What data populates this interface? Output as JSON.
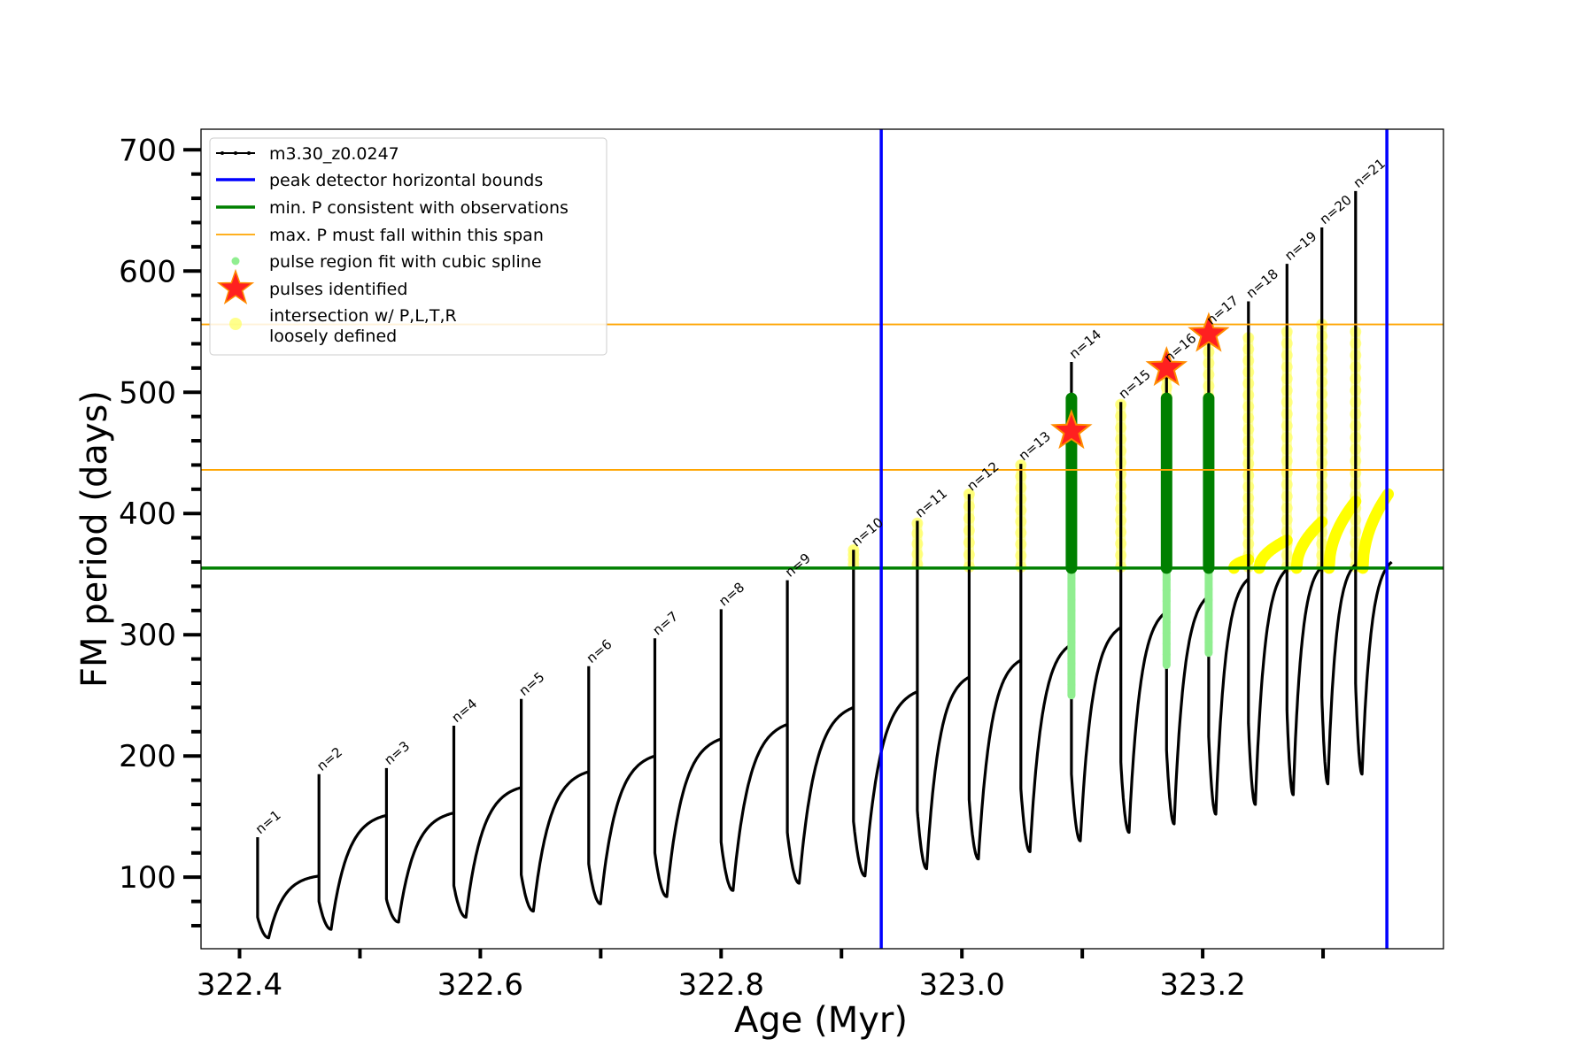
{
  "chart_data": {
    "type": "line",
    "xlabel": "Age (Myr)",
    "ylabel": "FM period (days)",
    "xlim": [
      322.368,
      323.4
    ],
    "ylim": [
      41,
      717
    ],
    "xticks": [
      322.4,
      322.6,
      322.8,
      323.0,
      323.2
    ],
    "xtick_labels": [
      "322.4",
      "322.6",
      "322.8",
      "323.0",
      "323.2"
    ],
    "xtick_minor": [
      322.5,
      322.7,
      322.9,
      323.1,
      323.3
    ],
    "yticks": [
      100,
      200,
      300,
      400,
      500,
      600,
      700
    ],
    "ytick_labels": [
      "100",
      "200",
      "300",
      "400",
      "500",
      "600",
      "700"
    ],
    "grid": false,
    "legend_position": "top-left",
    "legend": [
      {
        "label": "m3.30_z0.0247",
        "kind": "line-marker",
        "color": "#000000"
      },
      {
        "label": "peak detector horizontal bounds",
        "kind": "line",
        "color": "#0000ff"
      },
      {
        "label": "min. P consistent with observations",
        "kind": "line",
        "color": "#008000"
      },
      {
        "label": "max. P must fall within this span",
        "kind": "line-thin",
        "color": "#ffa500"
      },
      {
        "label": "pulse region fit with cubic spline",
        "kind": "dot",
        "color": "#90ee90"
      },
      {
        "label": "pulses identified",
        "kind": "star",
        "color": "#ff0000"
      },
      {
        "label": "intersection w/ P,L,T,R",
        "label2": "loosely defined",
        "kind": "circle",
        "color": "#ffff66"
      }
    ],
    "vertical_lines": [
      {
        "name": "peak detector horizontal bounds",
        "x": [
          322.933,
          323.353
        ],
        "color": "#0000ff"
      }
    ],
    "horizontal_lines": [
      {
        "name": "min. P consistent with observations",
        "y": 355,
        "color": "#008000"
      },
      {
        "name": "max. P must fall within this span",
        "y": [
          436,
          556
        ],
        "color": "#ffa500"
      }
    ],
    "series": [
      {
        "name": "m3.30_z0.0247",
        "color": "#000000",
        "pulses": [
          {
            "label": "n=1",
            "t": 322.415,
            "spike": 133,
            "drop": 67,
            "min": 50,
            "end": 101
          },
          {
            "label": "n=2",
            "t": 322.466,
            "spike": 185,
            "drop": 80,
            "min": 57,
            "end": 151
          },
          {
            "label": "n=3",
            "t": 322.522,
            "spike": 190,
            "drop": 82,
            "min": 63,
            "end": 153
          },
          {
            "label": "n=4",
            "t": 322.578,
            "spike": 225,
            "drop": 93,
            "min": 67,
            "end": 174
          },
          {
            "label": "n=5",
            "t": 322.634,
            "spike": 247,
            "drop": 102,
            "min": 72,
            "end": 187
          },
          {
            "label": "n=6",
            "t": 322.69,
            "spike": 274,
            "drop": 111,
            "min": 78,
            "end": 200
          },
          {
            "label": "n=7",
            "t": 322.745,
            "spike": 297,
            "drop": 120,
            "min": 84,
            "end": 214
          },
          {
            "label": "n=8",
            "t": 322.8,
            "spike": 321,
            "drop": 129,
            "min": 89,
            "end": 226
          },
          {
            "label": "n=9",
            "t": 322.855,
            "spike": 345,
            "drop": 137,
            "min": 95,
            "end": 240
          },
          {
            "label": "n=10",
            "t": 322.91,
            "spike": 370,
            "drop": 146,
            "min": 101,
            "end": 253
          },
          {
            "label": "n=11",
            "t": 322.963,
            "spike": 394,
            "drop": 155,
            "min": 107,
            "end": 265
          },
          {
            "label": "n=12",
            "t": 323.006,
            "spike": 416,
            "drop": 164,
            "min": 115,
            "end": 279
          },
          {
            "label": "n=13",
            "t": 323.049,
            "spike": 441,
            "drop": 173,
            "min": 121,
            "end": 292
          },
          {
            "label": "n=14",
            "t": 323.091,
            "spike": 525,
            "drop": 185,
            "min": 130,
            "end": 306
          },
          {
            "label": "n=15",
            "t": 323.132,
            "spike": 492,
            "drop": 195,
            "min": 137,
            "end": 319
          },
          {
            "label": "n=16",
            "t": 323.17,
            "spike": 522,
            "drop": 205,
            "min": 144,
            "end": 332
          },
          {
            "label": "n=17",
            "t": 323.205,
            "spike": 553,
            "drop": 216,
            "min": 152,
            "end": 346
          },
          {
            "label": "n=18",
            "t": 323.238,
            "spike": 575,
            "drop": 227,
            "min": 160,
            "end": 354
          },
          {
            "label": "n=19",
            "t": 323.27,
            "spike": 606,
            "drop": 238,
            "min": 168,
            "end": 356
          },
          {
            "label": "n=20",
            "t": 323.299,
            "spike": 636,
            "drop": 249,
            "min": 177,
            "end": 358
          },
          {
            "label": "n=21",
            "t": 323.327,
            "spike": 666,
            "drop": 260,
            "min": 185,
            "end": 360
          }
        ]
      },
      {
        "name": "pulse region fit with cubic spline",
        "color": "#90ee90",
        "regions": [
          {
            "t": 323.091,
            "y": [
              250,
              495
            ]
          },
          {
            "t": 323.17,
            "y": [
              275,
              495
            ]
          },
          {
            "t": 323.205,
            "y": [
              285,
              495
            ]
          }
        ]
      },
      {
        "name": "min. P consistent with observations",
        "color": "#008000",
        "regions": [
          {
            "t": 323.091,
            "y": [
              355,
              495
            ]
          },
          {
            "t": 323.17,
            "y": [
              355,
              495
            ]
          },
          {
            "t": 323.205,
            "y": [
              355,
              495
            ]
          }
        ]
      },
      {
        "name": "pulses identified",
        "color": "#ff0000",
        "points": [
          {
            "x": 323.091,
            "y": 468
          },
          {
            "x": 323.17,
            "y": 520
          },
          {
            "x": 323.205,
            "y": 548
          }
        ]
      },
      {
        "name": "intersection w/ P,L,T,R loosely defined",
        "color": "#ffff66",
        "columns": [
          {
            "t": 322.91,
            "y": [
              358,
              370
            ]
          },
          {
            "t": 322.963,
            "y": [
              358,
              392
            ]
          },
          {
            "t": 323.006,
            "y": [
              356,
              416
            ]
          },
          {
            "t": 323.049,
            "y": [
              356,
              440
            ]
          },
          {
            "t": 323.132,
            "y": [
              356,
              490
            ]
          },
          {
            "t": 323.17,
            "y": [
              496,
              520
            ]
          },
          {
            "t": 323.205,
            "y": [
              496,
              552
            ]
          },
          {
            "t": 323.238,
            "y": [
              356,
              545
            ]
          },
          {
            "t": 323.27,
            "y": [
              356,
              550
            ]
          },
          {
            "t": 323.299,
            "y": [
              356,
              556
            ]
          },
          {
            "t": 323.327,
            "y": [
              356,
              550
            ]
          }
        ],
        "arcs": [
          {
            "t0": 323.226,
            "t1": 323.238,
            "y0": 355,
            "y1": 362
          },
          {
            "t0": 323.247,
            "t1": 323.27,
            "y0": 355,
            "y1": 378
          },
          {
            "t0": 323.278,
            "t1": 323.299,
            "y0": 355,
            "y1": 393
          },
          {
            "t0": 323.305,
            "t1": 323.327,
            "y0": 355,
            "y1": 410
          },
          {
            "t0": 323.333,
            "t1": 323.354,
            "y0": 355,
            "y1": 416
          }
        ]
      }
    ]
  }
}
